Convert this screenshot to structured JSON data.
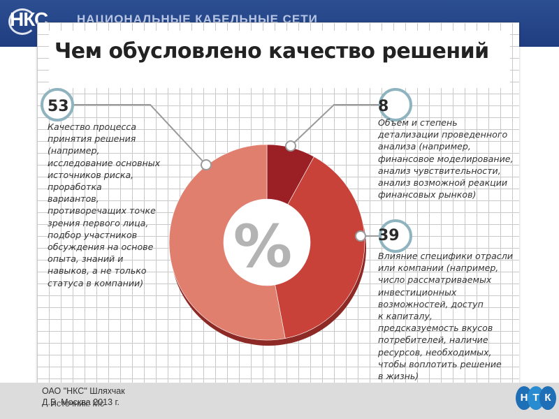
{
  "header": {
    "logo_text": "НКС",
    "company_name": "НАЦИОНАЛЬНЫЕ КАБЕЛЬНЫЕ СЕТИ"
  },
  "slide": {
    "title": "Чем обусловлено качество решений"
  },
  "chart_data": {
    "type": "pie",
    "subtype": "donut",
    "center_label": "%",
    "slices": [
      {
        "value": 53,
        "label": "Качество процесса\nпринятия решения\n(например,\nисследование основных\nисточников риска,\nпроработка\nвариантов,\nпротиворечащих точке\nзрения первого лица,\nподбор участников\nобсуждения на основе\nопыта, знаний и\nнавыков, а не только\nстатуса в компании)",
        "color": "#e17f6e"
      },
      {
        "value": 8,
        "label": "Объем и степень\nдетализации проведенного\nанализа (например,\nфинансовое моделирование,\nанализ чувствительности,\nанализ возможной реакции\nфинансовых рынков)",
        "color": "#9b2026"
      },
      {
        "value": 39,
        "label": "Влияние специфики отрасли\nили компании (например,\nчисло рассматриваемых\nинвестиционных\nвозможностей, доступ\nк капиталу,\nпредсказуемость вкусов\nпотребителей, наличие\nресурсов, необходимых,\nчтобы воплотить решение\nв жизнь)",
        "color": "#c8423a"
      }
    ]
  },
  "footer": {
    "line1": "ОАО \"НКС\"  Шляхчак\nД.Б. Москва 2013 г.",
    "line2": "Источник: Mc",
    "ntk_letters": [
      "Н",
      "Т",
      "К"
    ]
  }
}
